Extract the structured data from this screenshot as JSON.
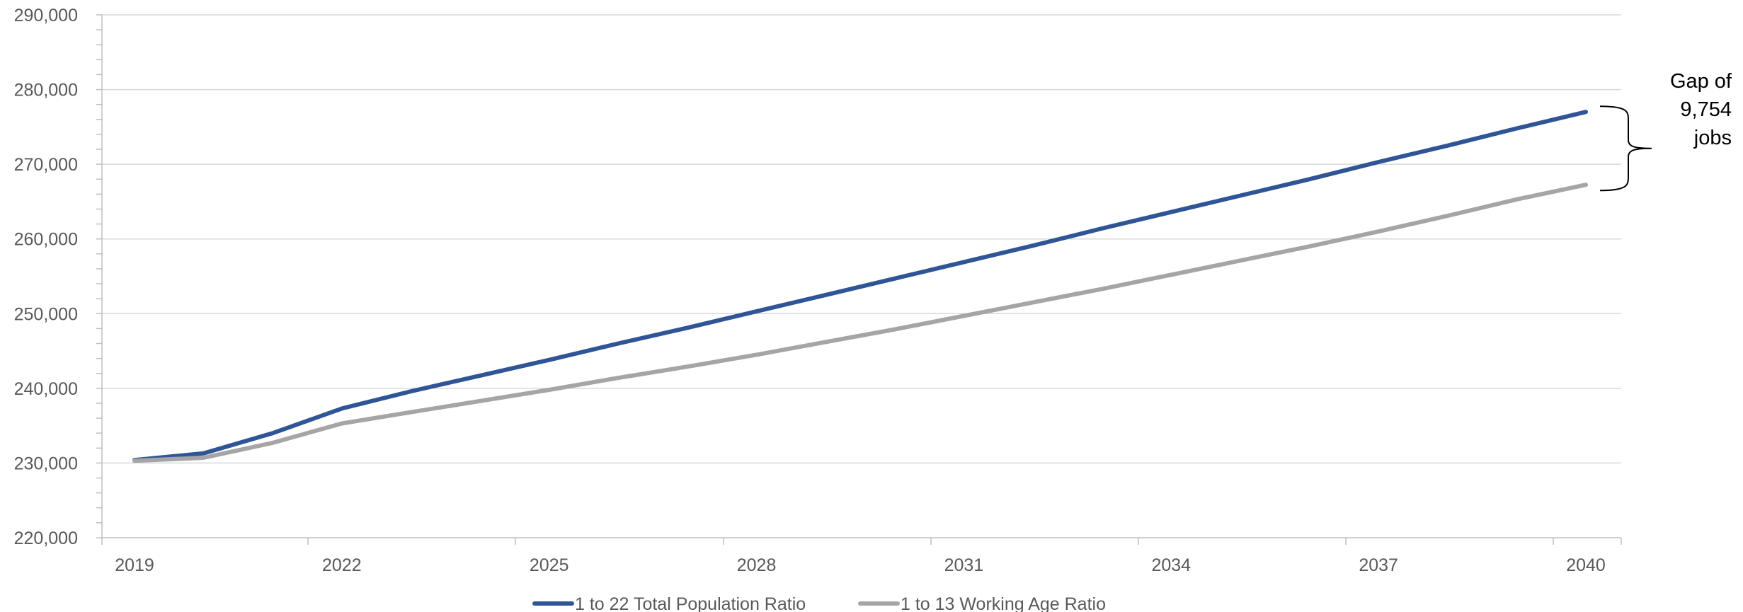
{
  "chart_data": {
    "type": "line",
    "title": "",
    "xlabel": "",
    "ylabel": "",
    "x": [
      2019,
      2020,
      2021,
      2022,
      2023,
      2024,
      2025,
      2026,
      2027,
      2028,
      2029,
      2030,
      2031,
      2032,
      2033,
      2034,
      2035,
      2036,
      2037,
      2038,
      2039,
      2040
    ],
    "xticks": [
      "2019",
      "2022",
      "2025",
      "2028",
      "2031",
      "2034",
      "2037",
      "2040"
    ],
    "ylim": [
      220000,
      290000
    ],
    "yticks": [
      "220,000",
      "230,000",
      "240,000",
      "250,000",
      "260,000",
      "270,000",
      "280,000",
      "290,000"
    ],
    "grid": "horizontal",
    "legend_position": "bottom",
    "colors": {
      "blue": "#2F5597",
      "gray": "#A5A5A5",
      "grid": "#D9D9D9",
      "axis": "#BFBFBF"
    },
    "series": [
      {
        "name": "1 to 22 Total Population Ratio",
        "color": "#2F5597",
        "values": [
          230400,
          231300,
          234000,
          237300,
          239600,
          241700,
          243800,
          246000,
          248100,
          250300,
          252500,
          254700,
          256900,
          259100,
          261400,
          263600,
          265800,
          268000,
          270300,
          272500,
          274800,
          277000
        ]
      },
      {
        "name": "1 to 13 Working Age Ratio",
        "color": "#A5A5A5",
        "values": [
          230300,
          230700,
          232700,
          235300,
          236800,
          238300,
          239800,
          241400,
          242900,
          244500,
          246200,
          247900,
          249700,
          251500,
          253300,
          255200,
          257100,
          259000,
          261000,
          263100,
          265300,
          267246
        ]
      }
    ],
    "annotation": {
      "lines": [
        "Gap of",
        "9,754",
        "jobs"
      ]
    }
  }
}
